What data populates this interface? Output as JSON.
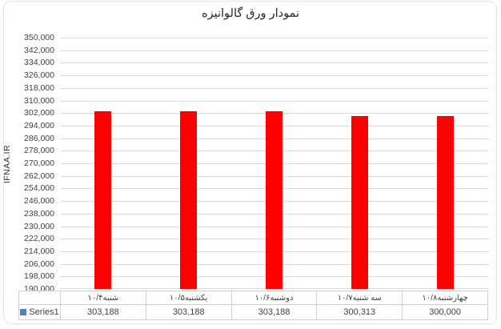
{
  "chart_data": {
    "type": "bar",
    "title": "نمودار ورق گالوانیزه",
    "ylabel": "IFNAA.IR",
    "xlabel": "",
    "categories": [
      "شنبه۱۰/۴",
      "یکشنبه۱۰/۵",
      "دوشنبه۱۰/۶",
      "سه شنبه۱۰/۷",
      "چهارشنبه۱۰/۸"
    ],
    "series": [
      {
        "name": "Series1",
        "values": [
          303188,
          303188,
          303188,
          300313,
          300000
        ]
      }
    ],
    "value_labels": [
      "303,188",
      "303,188",
      "303,188",
      "300,313",
      "300,000"
    ],
    "ylim": [
      190000,
      350000
    ],
    "ytick_step": 8000,
    "ytick_labels": [
      "350,000",
      "342,000",
      "334,000",
      "326,000",
      "318,000",
      "310,000",
      "302,000",
      "294,000",
      "286,000",
      "278,000",
      "270,000",
      "262,000",
      "254,000",
      "246,000",
      "238,000",
      "230,000",
      "222,000",
      "214,000",
      "206,000",
      "198,000",
      "190,000"
    ],
    "grid": true,
    "legend_position": "data-table-left",
    "has_data_table": true
  },
  "colors": {
    "bar": "#ff0000",
    "legend_key": "#4f81bd",
    "gridline": "#d9d9d9",
    "axis_text": "#404040",
    "title_text": "#262626",
    "table_border": "#c5d1dd",
    "frame_border": "#dde6ee"
  }
}
